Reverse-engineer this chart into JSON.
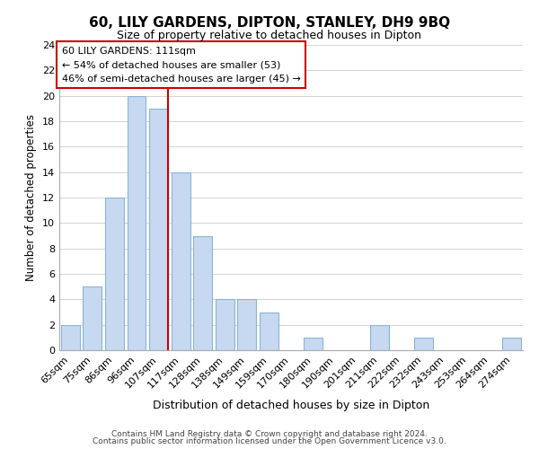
{
  "title": "60, LILY GARDENS, DIPTON, STANLEY, DH9 9BQ",
  "subtitle": "Size of property relative to detached houses in Dipton",
  "xlabel": "Distribution of detached houses by size in Dipton",
  "ylabel": "Number of detached properties",
  "bar_color": "#c6d9f0",
  "bar_edge_color": "#8ab4d8",
  "highlight_color": "#cc0000",
  "categories": [
    "65sqm",
    "75sqm",
    "86sqm",
    "96sqm",
    "107sqm",
    "117sqm",
    "128sqm",
    "138sqm",
    "149sqm",
    "159sqm",
    "170sqm",
    "180sqm",
    "190sqm",
    "201sqm",
    "211sqm",
    "222sqm",
    "232sqm",
    "243sqm",
    "253sqm",
    "264sqm",
    "274sqm"
  ],
  "values": [
    2,
    5,
    12,
    20,
    19,
    14,
    9,
    4,
    4,
    3,
    0,
    1,
    0,
    0,
    2,
    0,
    1,
    0,
    0,
    0,
    1
  ],
  "highlight_index": 4,
  "annotation_title": "60 LILY GARDENS: 111sqm",
  "annotation_line1": "← 54% of detached houses are smaller (53)",
  "annotation_line2": "46% of semi-detached houses are larger (45) →",
  "ylim": [
    0,
    24
  ],
  "yticks": [
    0,
    2,
    4,
    6,
    8,
    10,
    12,
    14,
    16,
    18,
    20,
    22,
    24
  ],
  "footer1": "Contains HM Land Registry data © Crown copyright and database right 2024.",
  "footer2": "Contains public sector information licensed under the Open Government Licence v3.0."
}
